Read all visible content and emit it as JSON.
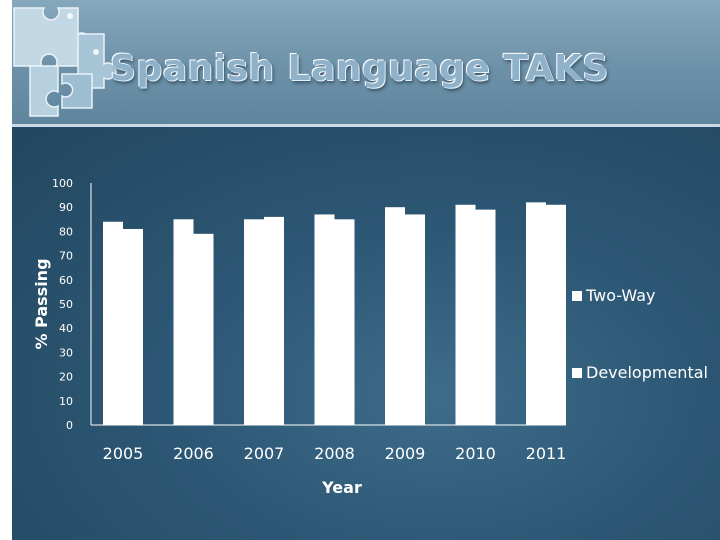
{
  "slide": {
    "title": "Spanish Language TAKS"
  },
  "colors": {
    "header": "#7a9db3",
    "panel": "#2c5774",
    "bar": "#ffffff",
    "title": "#8fb2ca"
  },
  "chart_data": {
    "type": "bar",
    "title": "",
    "xlabel": "Year",
    "ylabel": "% Passing",
    "ylim": [
      0,
      100
    ],
    "yticks": [
      "100",
      "90",
      "80",
      "70",
      "60",
      "50",
      "40",
      "30",
      "20",
      "10",
      "0"
    ],
    "categories": [
      "2005",
      "2006",
      "2007",
      "2008",
      "2009",
      "2010",
      "2011"
    ],
    "series": [
      {
        "name": "Two-Way",
        "values": [
          84,
          85,
          85,
          87,
          90,
          91,
          92
        ]
      },
      {
        "name": "Developmental",
        "values": [
          81,
          79,
          86,
          85,
          87,
          89,
          91
        ]
      }
    ],
    "legend_position": "right",
    "grid": false
  }
}
